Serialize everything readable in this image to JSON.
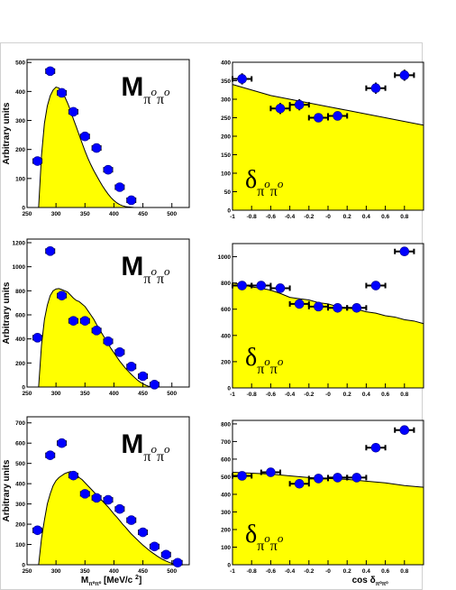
{
  "chart_data": [
    {
      "type": "scatter",
      "panel": "top-left",
      "ylabel": "Arbitrary units",
      "xlabel": "",
      "xlim": [
        250,
        530
      ],
      "ylim": [
        0,
        510
      ],
      "xticks": [
        "250",
        "300",
        "350",
        "400",
        "450",
        "500"
      ],
      "xtick_values": [
        250,
        300,
        350,
        400,
        450,
        500
      ],
      "yticks": [
        "0",
        "100",
        "200",
        "300",
        "400",
        "500"
      ],
      "ytick_values": [
        0,
        100,
        200,
        300,
        400,
        500
      ],
      "annotation": {
        "main": "M",
        "sub": "π",
        "sup": "o",
        "sub2": "π",
        "sup2": "o"
      },
      "series": [
        {
          "kind": "histogram",
          "x": [
            270,
            275,
            280,
            285,
            290,
            295,
            300,
            305,
            310,
            315,
            320,
            325,
            330,
            335,
            340,
            345,
            350,
            355,
            360,
            365,
            370,
            375,
            380,
            385,
            390,
            395,
            400,
            405,
            410,
            415,
            420,
            425,
            430,
            435,
            440,
            445
          ],
          "y": [
            0,
            180,
            290,
            350,
            385,
            405,
            415,
            412,
            400,
            382,
            360,
            335,
            305,
            278,
            250,
            222,
            195,
            170,
            148,
            128,
            110,
            92,
            75,
            60,
            46,
            34,
            24,
            16,
            10,
            6,
            3,
            2,
            1,
            0,
            0,
            0
          ]
        },
        {
          "kind": "points",
          "x": [
            268,
            290,
            310,
            330,
            350,
            370,
            390,
            410,
            430
          ],
          "y": [
            160,
            470,
            395,
            330,
            245,
            205,
            130,
            70,
            25
          ],
          "xerr": [
            7,
            7,
            7,
            7,
            7,
            7,
            7,
            7,
            7
          ],
          "yerr": [
            10,
            15,
            15,
            12,
            10,
            10,
            8,
            6,
            4
          ]
        }
      ]
    },
    {
      "type": "scatter",
      "panel": "top-right",
      "ylabel": "",
      "xlabel": "",
      "xlim": [
        -1,
        1
      ],
      "ylim": [
        0,
        400
      ],
      "xticks": [
        "-1",
        "-0.8",
        "-0.6",
        "-0.4",
        "-0.2",
        "-0",
        "0.2",
        "0.4",
        "0.6",
        "0.8"
      ],
      "xtick_values": [
        -1,
        -0.8,
        -0.6,
        -0.4,
        -0.2,
        0,
        0.2,
        0.4,
        0.6,
        0.8
      ],
      "yticks": [
        "0",
        "50",
        "100",
        "150",
        "200",
        "250",
        "300",
        "350",
        "400"
      ],
      "ytick_values": [
        0,
        50,
        100,
        150,
        200,
        250,
        300,
        350,
        400
      ],
      "annotation": {
        "main": "δ",
        "sub": "π",
        "sup": "o",
        "sub2": "π",
        "sup2": "o"
      },
      "series": [
        {
          "kind": "histogram",
          "x": [
            -1,
            -0.8,
            -0.6,
            -0.4,
            -0.2,
            0,
            0.2,
            0.4,
            0.6,
            0.8,
            1
          ],
          "y": [
            340,
            325,
            310,
            300,
            290,
            280,
            270,
            260,
            250,
            240,
            230
          ]
        },
        {
          "kind": "points",
          "x": [
            -0.9,
            -0.5,
            -0.3,
            -0.1,
            0.1,
            0.5,
            0.8
          ],
          "y": [
            355,
            275,
            285,
            250,
            255,
            330,
            365
          ],
          "xerr": [
            0.1,
            0.1,
            0.1,
            0.1,
            0.1,
            0.1,
            0.1
          ],
          "yerr": [
            15,
            15,
            15,
            10,
            12,
            15,
            15
          ]
        }
      ]
    },
    {
      "type": "scatter",
      "panel": "middle-left",
      "ylabel": "Arbitrary units",
      "xlabel": "",
      "xlim": [
        250,
        530
      ],
      "ylim": [
        0,
        1230
      ],
      "xticks": [
        "250",
        "300",
        "350",
        "400",
        "450",
        "500"
      ],
      "xtick_values": [
        250,
        300,
        350,
        400,
        450,
        500
      ],
      "yticks": [
        "0",
        "200",
        "400",
        "600",
        "800",
        "1000",
        "1200"
      ],
      "ytick_values": [
        0,
        200,
        400,
        600,
        800,
        1000,
        1200
      ],
      "annotation": {
        "main": "M",
        "sub": "π",
        "sup": "o",
        "sub2": "π",
        "sup2": "o"
      },
      "series": [
        {
          "kind": "histogram",
          "x": [
            270,
            275,
            280,
            285,
            290,
            295,
            300,
            305,
            310,
            315,
            320,
            325,
            330,
            335,
            340,
            345,
            350,
            355,
            360,
            365,
            370,
            375,
            380,
            385,
            390,
            395,
            400,
            405,
            410,
            415,
            420,
            425,
            430,
            435,
            440,
            445,
            450,
            455,
            460,
            465,
            470
          ],
          "y": [
            0,
            350,
            560,
            680,
            760,
            800,
            815,
            818,
            810,
            800,
            790,
            765,
            740,
            720,
            710,
            690,
            670,
            635,
            600,
            565,
            520,
            480,
            440,
            400,
            360,
            320,
            285,
            250,
            215,
            185,
            155,
            130,
            105,
            82,
            60,
            42,
            28,
            15,
            6,
            2,
            0
          ]
        },
        {
          "kind": "points",
          "x": [
            268,
            290,
            310,
            330,
            350,
            370,
            390,
            410,
            430,
            450,
            470
          ],
          "y": [
            410,
            1130,
            760,
            550,
            550,
            470,
            380,
            290,
            170,
            90,
            20
          ],
          "xerr": [
            7,
            7,
            7,
            7,
            7,
            7,
            7,
            7,
            7,
            7,
            7
          ],
          "yerr": [
            20,
            30,
            25,
            20,
            20,
            20,
            15,
            12,
            10,
            8,
            5
          ]
        }
      ]
    },
    {
      "type": "scatter",
      "panel": "middle-right",
      "ylabel": "",
      "xlabel": "",
      "xlim": [
        -1,
        1
      ],
      "ylim": [
        0,
        1100
      ],
      "xticks": [
        "-1",
        "-0.8",
        "-0.6",
        "-0.4",
        "-0.2",
        "-0",
        "0.2",
        "0.4",
        "0.6",
        "0.8"
      ],
      "xtick_values": [
        -1,
        -0.8,
        -0.6,
        -0.4,
        -0.2,
        0,
        0.2,
        0.4,
        0.6,
        0.8
      ],
      "yticks": [
        "0",
        "200",
        "400",
        "600",
        "800",
        "1000"
      ],
      "ytick_values": [
        0,
        200,
        400,
        600,
        800,
        1000
      ],
      "annotation": {
        "main": "δ",
        "sub": "π",
        "sup": "o",
        "sub2": "π",
        "sup2": "o"
      },
      "series": [
        {
          "kind": "histogram",
          "x": [
            -1,
            -0.9,
            -0.8,
            -0.7,
            -0.6,
            -0.5,
            -0.4,
            -0.3,
            -0.2,
            -0.1,
            0,
            0.1,
            0.2,
            0.3,
            0.4,
            0.5,
            0.6,
            0.7,
            0.8,
            0.9,
            1
          ],
          "y": [
            800,
            790,
            770,
            760,
            745,
            720,
            690,
            680,
            670,
            650,
            640,
            620,
            610,
            600,
            580,
            570,
            550,
            540,
            520,
            510,
            490
          ]
        },
        {
          "kind": "points",
          "x": [
            -0.9,
            -0.7,
            -0.5,
            -0.3,
            -0.1,
            0.1,
            0.3,
            0.5,
            0.8
          ],
          "y": [
            780,
            780,
            760,
            640,
            620,
            610,
            610,
            780,
            1040
          ],
          "xerr": [
            0.1,
            0.1,
            0.1,
            0.1,
            0.1,
            0.1,
            0.1,
            0.1,
            0.1
          ],
          "yerr": [
            20,
            20,
            20,
            20,
            15,
            15,
            15,
            20,
            25
          ]
        }
      ]
    },
    {
      "type": "scatter",
      "panel": "bottom-left",
      "ylabel": "Arbitrary units",
      "xlabel": "M",
      "xlabel_sub": "π⁰π⁰",
      "xlabel_unit": "[MeV/c",
      "xlim": [
        250,
        530
      ],
      "ylim": [
        0,
        730
      ],
      "xticks": [
        "250",
        "300",
        "350",
        "400",
        "450",
        "500"
      ],
      "xtick_values": [
        250,
        300,
        350,
        400,
        450,
        500
      ],
      "yticks": [
        "0",
        "100",
        "200",
        "300",
        "400",
        "500",
        "600",
        "700"
      ],
      "ytick_values": [
        0,
        100,
        200,
        300,
        400,
        500,
        600,
        700
      ],
      "annotation": {
        "main": "M",
        "sub": "π",
        "sup": "o",
        "sub2": "π",
        "sup2": "o"
      },
      "series": [
        {
          "kind": "histogram",
          "x": [
            270,
            275,
            280,
            285,
            290,
            295,
            300,
            305,
            310,
            315,
            320,
            325,
            330,
            335,
            340,
            345,
            350,
            355,
            360,
            365,
            370,
            375,
            380,
            385,
            390,
            395,
            400,
            405,
            410,
            415,
            420,
            425,
            430,
            435,
            440,
            445,
            450,
            455,
            460,
            465,
            470,
            475,
            480,
            485,
            490,
            495,
            500,
            505,
            510
          ],
          "y": [
            0,
            130,
            220,
            300,
            350,
            390,
            415,
            430,
            440,
            450,
            455,
            460,
            455,
            445,
            430,
            420,
            405,
            390,
            375,
            360,
            345,
            330,
            315,
            300,
            285,
            268,
            250,
            235,
            218,
            200,
            185,
            168,
            152,
            138,
            124,
            110,
            97,
            85,
            73,
            62,
            52,
            42,
            33,
            25,
            18,
            12,
            7,
            3,
            0
          ]
        },
        {
          "kind": "points",
          "x": [
            268,
            290,
            310,
            330,
            350,
            370,
            390,
            410,
            430,
            450,
            470,
            490,
            510
          ],
          "y": [
            170,
            540,
            600,
            440,
            350,
            330,
            320,
            275,
            220,
            160,
            90,
            50,
            10
          ],
          "xerr": [
            7,
            7,
            7,
            7,
            7,
            7,
            7,
            7,
            7,
            7,
            7,
            7,
            7
          ],
          "yerr": [
            12,
            15,
            15,
            15,
            12,
            12,
            12,
            10,
            10,
            8,
            6,
            5,
            3
          ]
        }
      ]
    },
    {
      "type": "scatter",
      "panel": "bottom-right",
      "ylabel": "",
      "xlabel": "cos δ",
      "xlabel_sub": "π⁰π⁰",
      "xlim": [
        -1,
        1
      ],
      "ylim": [
        0,
        820
      ],
      "xticks": [
        "-1",
        "-0.8",
        "-0.6",
        "-0.4",
        "-0.2",
        "-0",
        "0.2",
        "0.4",
        "0.6",
        "0.8"
      ],
      "xtick_values": [
        -1,
        -0.8,
        -0.6,
        -0.4,
        -0.2,
        0,
        0.2,
        0.4,
        0.6,
        0.8
      ],
      "yticks": [
        "0",
        "100",
        "200",
        "300",
        "400",
        "500",
        "600",
        "700",
        "800"
      ],
      "ytick_values": [
        0,
        100,
        200,
        300,
        400,
        500,
        600,
        700,
        800
      ],
      "annotation": {
        "main": "δ",
        "sub": "π",
        "sup": "o",
        "sub2": "π",
        "sup2": "o"
      },
      "series": [
        {
          "kind": "histogram",
          "x": [
            -1,
            -0.8,
            -0.6,
            -0.4,
            -0.2,
            0,
            0.2,
            0.4,
            0.6,
            0.8,
            1
          ],
          "y": [
            525,
            520,
            515,
            505,
            495,
            490,
            485,
            475,
            465,
            450,
            440
          ]
        },
        {
          "kind": "points",
          "x": [
            -0.9,
            -0.6,
            -0.3,
            -0.1,
            0.1,
            0.3,
            0.5,
            0.8
          ],
          "y": [
            505,
            525,
            460,
            490,
            495,
            495,
            665,
            765
          ],
          "xerr": [
            0.1,
            0.1,
            0.1,
            0.1,
            0.1,
            0.1,
            0.1,
            0.1
          ],
          "yerr": [
            15,
            15,
            15,
            12,
            12,
            12,
            15,
            20
          ]
        }
      ]
    }
  ],
  "colors": {
    "fill": "#ffff00",
    "line": "#000000",
    "marker": "#0000ff",
    "frame": "#000000"
  }
}
